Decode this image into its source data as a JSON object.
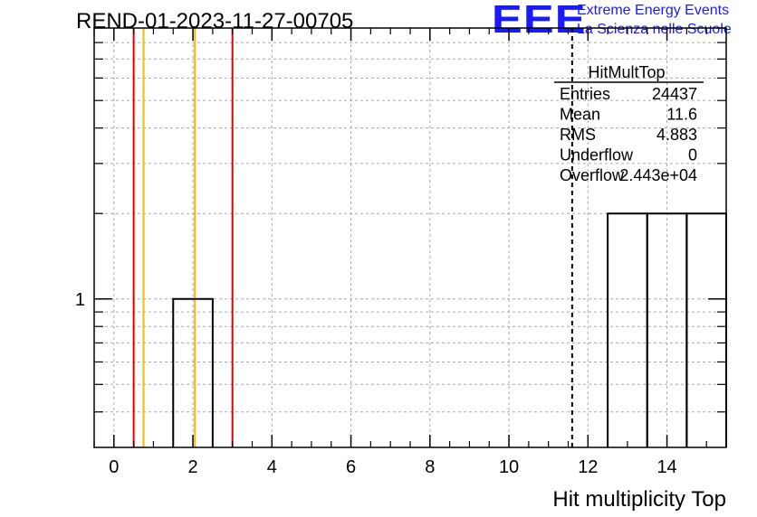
{
  "header": {
    "run_title": "REND-01-2023-11-27-00705",
    "logo_text": "EEE",
    "logo_line1": "Extreme Energy Events",
    "logo_line2": "La Scienza nelle Scuole"
  },
  "stats_box": {
    "title": "HitMultTop",
    "rows": [
      {
        "label": "Entries",
        "value": "24437"
      },
      {
        "label": "Mean",
        "value": "11.6"
      },
      {
        "label": "RMS",
        "value": "4.883"
      },
      {
        "label": "Underflow",
        "value": "0"
      },
      {
        "label": "Overflow",
        "value": "2.443e+04"
      }
    ]
  },
  "chart_data": {
    "type": "bar",
    "histogram_name": "HitMultTop",
    "xlabel": "Hit multiplicity Top",
    "ylabel": "",
    "xlim": [
      -0.5,
      15.5
    ],
    "y_scale": "log",
    "ylim": [
      0.3,
      9
    ],
    "x_ticks": [
      0,
      2,
      4,
      6,
      8,
      10,
      12,
      14
    ],
    "y_tick_labels": [
      {
        "value": 1,
        "label": "1"
      }
    ],
    "grid": true,
    "bins": [
      {
        "low": 1.5,
        "high": 2.5,
        "count": 1
      },
      {
        "low": 12.5,
        "high": 13.5,
        "count": 2
      },
      {
        "low": 13.5,
        "high": 14.5,
        "count": 2
      },
      {
        "low": 14.5,
        "high": 15.5,
        "count": 2
      }
    ],
    "vertical_lines": [
      {
        "x": 0.5,
        "color": "#e00000",
        "style": "solid"
      },
      {
        "x": 0.75,
        "color": "#f5b800",
        "style": "solid"
      },
      {
        "x": 2.05,
        "color": "#f5b800",
        "style": "solid"
      },
      {
        "x": 3.0,
        "color": "#e00000",
        "style": "solid"
      },
      {
        "x": 11.6,
        "color": "#000000",
        "style": "dashed"
      }
    ]
  }
}
